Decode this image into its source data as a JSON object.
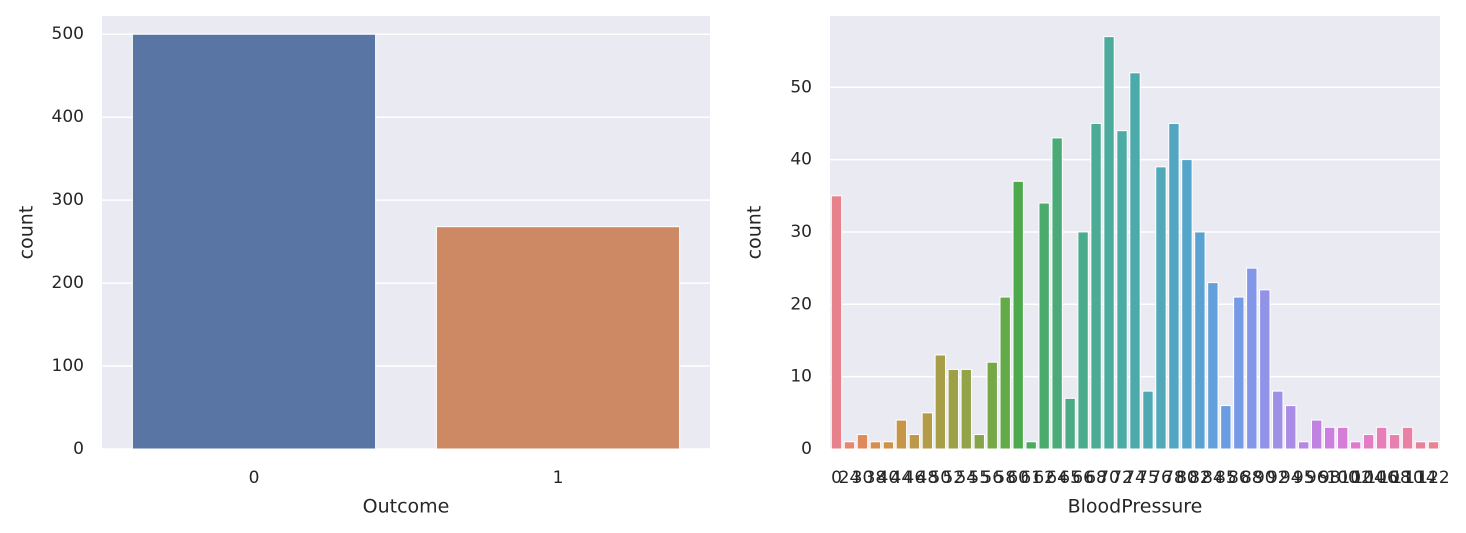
{
  "chart_data": [
    {
      "type": "bar",
      "xlabel": "Outcome",
      "ylabel": "count",
      "categories": [
        "0",
        "1"
      ],
      "values": [
        500,
        268
      ],
      "colors": [
        "#5875a4",
        "#cc8963"
      ],
      "ylim": [
        0,
        522
      ],
      "yticks": [
        0,
        100,
        200,
        300,
        400,
        500
      ],
      "grid": true
    },
    {
      "type": "bar",
      "xlabel": "BloodPressure",
      "ylabel": "count",
      "categories": [
        "0",
        "24",
        "30",
        "38",
        "40",
        "44",
        "46",
        "48",
        "50",
        "52",
        "54",
        "55",
        "56",
        "58",
        "60",
        "61",
        "62",
        "64",
        "65",
        "66",
        "68",
        "70",
        "72",
        "74",
        "75",
        "76",
        "78",
        "80",
        "82",
        "84",
        "85",
        "86",
        "88",
        "90",
        "92",
        "94",
        "95",
        "96",
        "98",
        "100",
        "102",
        "104",
        "106",
        "108",
        "110",
        "114",
        "122"
      ],
      "values": [
        35,
        1,
        2,
        1,
        1,
        4,
        2,
        5,
        13,
        11,
        11,
        2,
        12,
        21,
        37,
        1,
        34,
        43,
        7,
        30,
        45,
        57,
        44,
        52,
        8,
        39,
        45,
        40,
        30,
        23,
        6,
        21,
        25,
        22,
        8,
        6,
        1,
        4,
        3,
        3,
        1,
        2,
        3,
        2,
        3,
        1,
        1
      ],
      "colors": [
        "#e7828c",
        "#e5866f",
        "#e08a5c",
        "#d88e50",
        "#cf9249",
        "#c69548",
        "#bd9848",
        "#b39b48",
        "#a99e48",
        "#9ea048",
        "#92a348",
        "#85a548",
        "#76a848",
        "#63aa49",
        "#4daa4c",
        "#4aab5e",
        "#4aab6d",
        "#4aab79",
        "#4aab84",
        "#4aab8d",
        "#4bab95",
        "#4bab9d",
        "#4caba4",
        "#4daaab",
        "#4ea9b2",
        "#50a8b9",
        "#52a6c1",
        "#55a4c9",
        "#5aa2d2",
        "#61a0da",
        "#6a9ce2",
        "#769ae6",
        "#8396e8",
        "#9193e8",
        "#9e8fe7",
        "#aa8be6",
        "#b687e4",
        "#c183e2",
        "#cc7fdf",
        "#d67cd9",
        "#df7acf",
        "#e47cc4",
        "#e67eb9",
        "#e780ae",
        "#e881a4",
        "#e8829b",
        "#e88393"
      ],
      "ylim": [
        0,
        59.85
      ],
      "yticks": [
        0,
        10,
        20,
        30,
        40,
        50
      ],
      "grid": true
    }
  ]
}
